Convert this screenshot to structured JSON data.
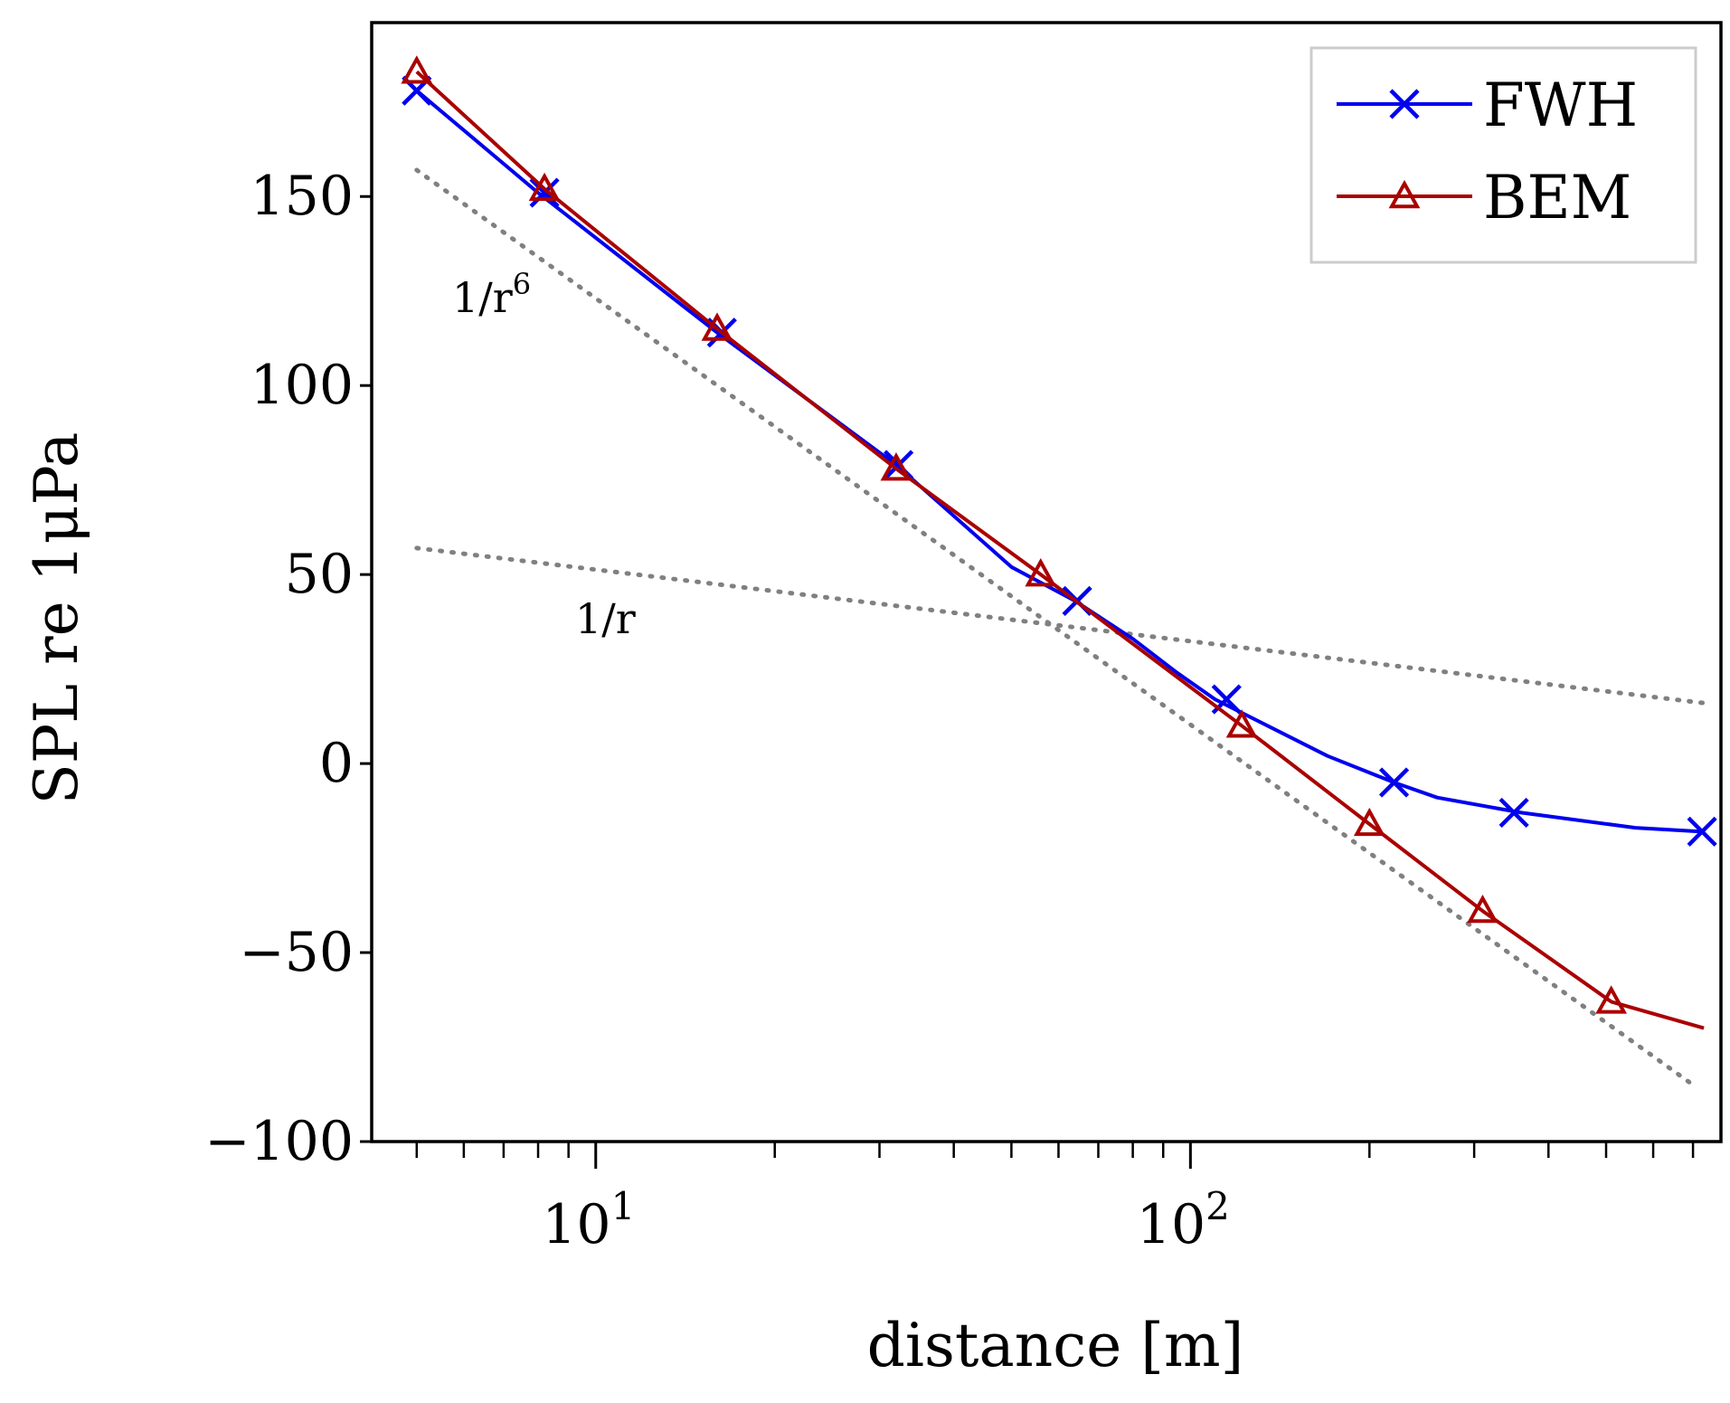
{
  "chart_data": {
    "type": "line",
    "xscale": "log",
    "xlabel": "distance [m]",
    "ylabel": "SPL re 1μPa",
    "xlim": [
      4.2,
      780
    ],
    "ylim": [
      -100,
      196
    ],
    "yticks": [
      -100,
      -50,
      0,
      50,
      100,
      150
    ],
    "ytick_labels": [
      "−100",
      "−50",
      "0",
      "50",
      "100",
      "150"
    ],
    "xticks_major": [
      {
        "base": "10",
        "exp": "1",
        "value": 10
      },
      {
        "base": "10",
        "exp": "2",
        "value": 100
      }
    ],
    "xticks_minor": [
      5,
      6,
      7,
      8,
      9,
      20,
      30,
      40,
      50,
      60,
      70,
      80,
      90,
      200,
      300,
      400,
      500,
      600,
      700
    ],
    "legend_position": "top-right",
    "series": [
      {
        "name": "FWH",
        "color": "#0000ee",
        "marker": "x",
        "x": [
          5,
          8,
          16,
          32,
          50,
          64,
          80,
          95,
          110,
          170,
          220,
          260,
          360,
          560,
          720
        ],
        "y": [
          178,
          151,
          114,
          79,
          52,
          43,
          33,
          24,
          17,
          2,
          -5,
          -9,
          -13,
          -17,
          -18
        ],
        "markers_x": [
          5,
          8.2,
          16.3,
          32.3,
          64.5,
          115,
          220,
          350,
          725
        ],
        "markers_y": [
          178,
          151,
          114,
          79,
          43,
          17,
          -5,
          -13,
          -18
        ]
      },
      {
        "name": "BEM",
        "color": "#aa0000",
        "marker": "triangle",
        "x": [
          5,
          8.2,
          16,
          32,
          56,
          122,
          200,
          310,
          510,
          730
        ],
        "y": [
          183,
          152,
          115,
          78,
          50,
          10,
          -16,
          -39,
          -63,
          -70
        ],
        "markers_x": [
          5,
          8.2,
          16,
          32,
          56,
          122,
          200,
          310,
          510
        ],
        "markers_y": [
          183,
          152,
          115,
          78,
          50,
          10,
          -16,
          -39,
          -63
        ]
      }
    ],
    "reference_lines": [
      {
        "name": "1/r^6",
        "label_main": "1/r",
        "label_sup": "6",
        "x": [
          5,
          700
        ],
        "y": [
          157,
          -85
        ]
      },
      {
        "name": "1/r",
        "label_main": "1/r",
        "label_sup": "",
        "x": [
          5,
          730
        ],
        "y": [
          57,
          16
        ]
      }
    ]
  }
}
